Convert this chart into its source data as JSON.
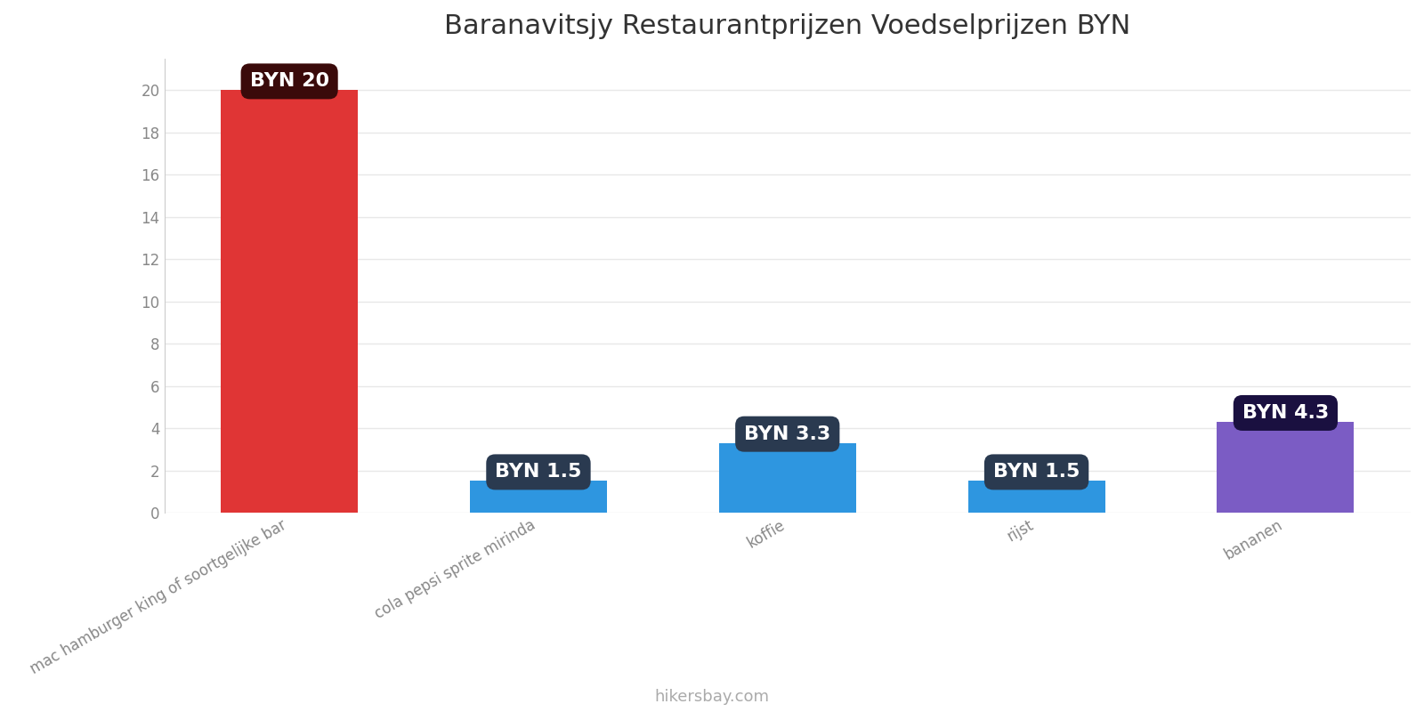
{
  "title": "Baranavitsjy Restaurantprijzen Voedselprijzen BYN",
  "categories": [
    "mac hamburger king of soortgelijke bar",
    "cola pepsi sprite mirinda",
    "koffie",
    "rijst",
    "bananen"
  ],
  "values": [
    20,
    1.5,
    3.3,
    1.5,
    4.3
  ],
  "bar_colors": [
    "#e03535",
    "#2e96e0",
    "#2e96e0",
    "#2e96e0",
    "#7b5cc4"
  ],
  "label_texts": [
    "BYN 20",
    "BYN 1.5",
    "BYN 3.3",
    "BYN 1.5",
    "BYN 4.3"
  ],
  "label_bg_colors": [
    "#3a0a0a",
    "#2a3a50",
    "#2a3a50",
    "#2a3a50",
    "#1a1040"
  ],
  "ylim": [
    0,
    21.5
  ],
  "yticks": [
    0,
    2,
    4,
    6,
    8,
    10,
    12,
    14,
    16,
    18,
    20
  ],
  "footer_text": "hikersbay.com",
  "title_fontsize": 22,
  "axis_fontsize": 12,
  "label_fontsize": 16,
  "footer_fontsize": 13,
  "background_color": "#ffffff",
  "grid_color": "#e8e8e8"
}
